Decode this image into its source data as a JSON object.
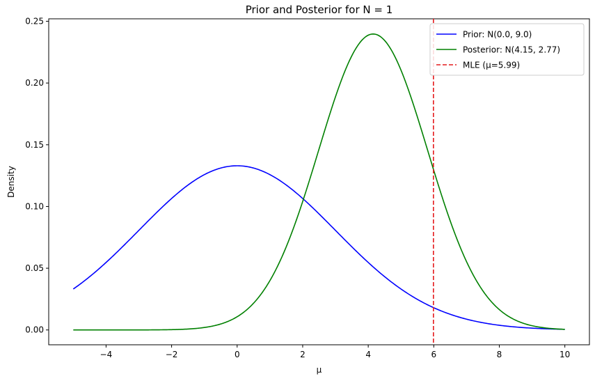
{
  "chart_data": {
    "type": "line",
    "title": "Prior and Posterior for N = 1",
    "xlabel": "μ",
    "ylabel": "Density",
    "xlim": [
      -5.75,
      10.75
    ],
    "ylim": [
      -0.012,
      0.252
    ],
    "xticks": [
      -4,
      -2,
      0,
      2,
      4,
      6,
      8,
      10
    ],
    "xtick_labels": [
      "−4",
      "−2",
      "0",
      "2",
      "4",
      "6",
      "8",
      "10"
    ],
    "yticks": [
      0.0,
      0.05,
      0.1,
      0.15,
      0.2,
      0.25
    ],
    "ytick_labels": [
      "0.00",
      "0.05",
      "0.10",
      "0.15",
      "0.20",
      "0.25"
    ],
    "grid": false,
    "legend_position": "top-right",
    "x_range": [
      -5,
      10
    ],
    "series": [
      {
        "name": "Prior: N(0.0, 9.0)",
        "distribution": "normal",
        "mean": 0.0,
        "variance": 9.0,
        "color": "#0000ff",
        "style": "solid"
      },
      {
        "name": "Posterior: N(4.15, 2.77)",
        "distribution": "normal",
        "mean": 4.15,
        "variance": 2.77,
        "color": "#008000",
        "style": "solid"
      }
    ],
    "vlines": [
      {
        "name": "MLE (μ=5.99)",
        "x": 5.99,
        "color": "#e41a1c",
        "style": "dashed"
      }
    ]
  }
}
